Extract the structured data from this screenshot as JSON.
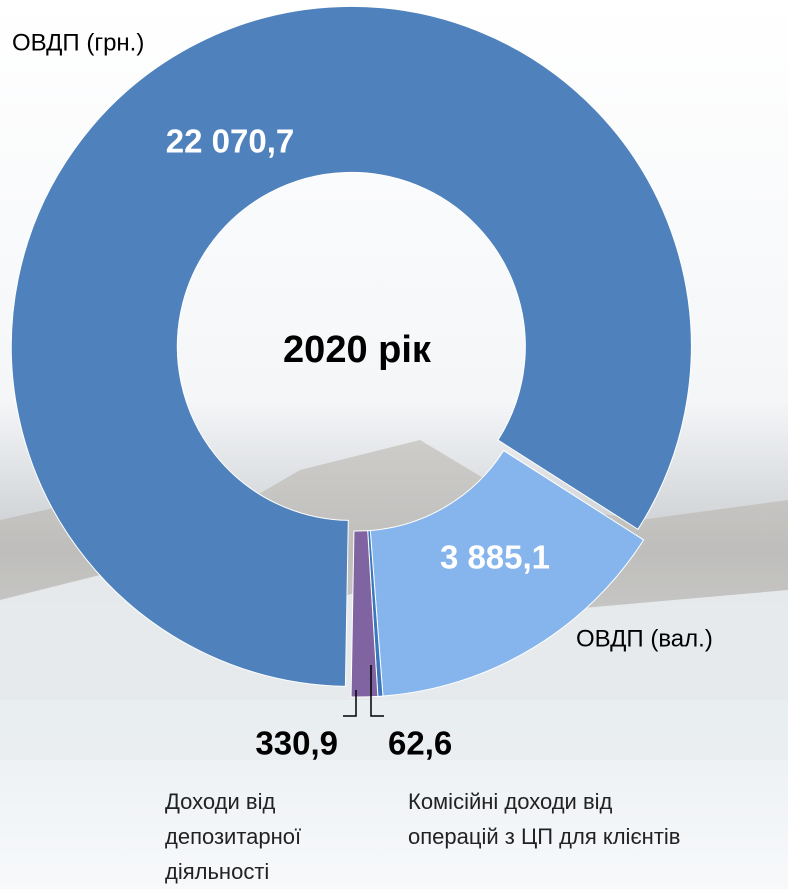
{
  "chart_data": {
    "type": "donut",
    "center_label": "2020 рік",
    "categories": [
      "ОВДП (грн.)",
      "ОВДП (вал.)",
      "Комісійні доходи від операцій з ЦП для клієнтів",
      "Доходи від депозитарної діяльності"
    ],
    "values": [
      22070.7,
      3885.1,
      62.6,
      330.9
    ],
    "value_labels": [
      "22 070,7",
      "3 885,1",
      "62,6",
      "330,9"
    ],
    "colors": [
      "#4f81bd",
      "#85b5ec",
      "#3b78be",
      "#8064a2"
    ]
  }
}
